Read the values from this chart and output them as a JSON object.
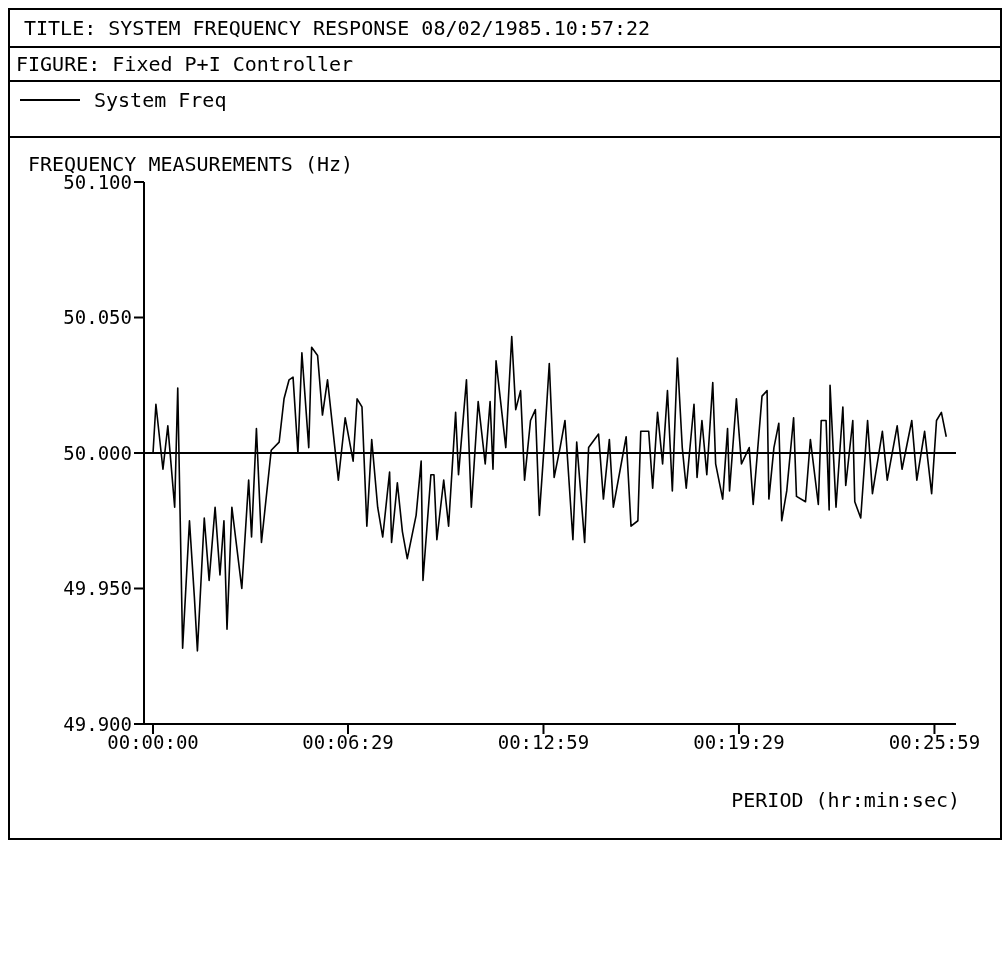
{
  "chart_data": {
    "type": "line",
    "title": "TITLE: SYSTEM FREQUENCY RESPONSE   08/02/1985.10:57:22",
    "subtitle": "FIGURE:  Fixed P+I Controller",
    "ylabel": "FREQUENCY MEASUREMENTS (Hz)",
    "xlabel": "PERIOD (hr:min:sec)",
    "legend": "top left",
    "grid": false,
    "marker": "none",
    "line_style": "solid",
    "xlim": [
      -0.005,
      0.445
    ],
    "ylim": [
      49.9,
      50.1
    ],
    "xticks": [
      {
        "value": 0,
        "label": "00:00:00"
      },
      {
        "value": 0.10806,
        "label": "00:06:29"
      },
      {
        "value": 0.21639,
        "label": "00:12:59"
      },
      {
        "value": 0.32472,
        "label": "00:19:29"
      },
      {
        "value": 0.43306,
        "label": "00:25:59"
      }
    ],
    "yticks": [
      {
        "value": 49.9,
        "label": "49.900"
      },
      {
        "value": 49.95,
        "label": "49.950"
      },
      {
        "value": 50,
        "label": "50.000"
      },
      {
        "value": 50.05,
        "label": "50.050"
      },
      {
        "value": 50.1,
        "label": "50.100"
      }
    ],
    "ref_lines": [
      {
        "axis": "y",
        "value": 50,
        "label": null,
        "color": "#000000"
      }
    ],
    "series": [
      {
        "name": "System Freq",
        "color": "#000000",
        "x": [
          0,
          0.0016,
          0.0055,
          0.0082,
          0.012,
          0.0137,
          0.0164,
          0.0202,
          0.0229,
          0.0246,
          0.0284,
          0.0311,
          0.0344,
          0.0371,
          0.0393,
          0.041,
          0.0437,
          0.0492,
          0.053,
          0.0546,
          0.0573,
          0.0601,
          0.0655,
          0.0699,
          0.0726,
          0.0754,
          0.0776,
          0.0803,
          0.0825,
          0.0863,
          0.0879,
          0.0912,
          0.0939,
          0.0967,
          0.1027,
          0.1065,
          0.1109,
          0.1131,
          0.1158,
          0.1185,
          0.1212,
          0.1245,
          0.1273,
          0.1311,
          0.1322,
          0.1354,
          0.1382,
          0.1409,
          0.1458,
          0.1486,
          0.1496,
          0.154,
          0.1557,
          0.1573,
          0.1611,
          0.1638,
          0.1677,
          0.1693,
          0.1737,
          0.1764,
          0.1802,
          0.1841,
          0.1868,
          0.1884,
          0.1901,
          0.1955,
          0.1988,
          0.201,
          0.2037,
          0.2059,
          0.2092,
          0.2119,
          0.2141,
          0.2168,
          0.2196,
          0.2223,
          0.2256,
          0.2283,
          0.2327,
          0.2348,
          0.2392,
          0.2414,
          0.2469,
          0.2496,
          0.2529,
          0.2551,
          0.2622,
          0.2649,
          0.2687,
          0.2703,
          0.2747,
          0.2769,
          0.2796,
          0.2824,
          0.2851,
          0.2878,
          0.2906,
          0.2933,
          0.2955,
          0.2998,
          0.3015,
          0.3042,
          0.3069,
          0.3102,
          0.3118,
          0.3157,
          0.3184,
          0.3195,
          0.3233,
          0.3261,
          0.3304,
          0.3326,
          0.3375,
          0.3403,
          0.3413,
          0.3441,
          0.3468,
          0.3484,
          0.3512,
          0.355,
          0.3566,
          0.3616,
          0.3643,
          0.3687,
          0.3703,
          0.373,
          0.3747,
          0.3752,
          0.3785,
          0.3823,
          0.3839,
          0.3878,
          0.3889,
          0.3922,
          0.396,
          0.3987,
          0.4042,
          0.4069,
          0.4124,
          0.4151,
          0.4205,
          0.4233,
          0.4276,
          0.4315,
          0.4342,
          0.4369,
          0.4396
        ],
        "values": [
          50.0,
          50.018,
          49.994,
          50.01,
          49.98,
          50.024,
          49.928,
          49.975,
          49.947,
          49.927,
          49.976,
          49.953,
          49.98,
          49.955,
          49.975,
          49.935,
          49.98,
          49.95,
          49.99,
          49.969,
          50.009,
          49.967,
          50.001,
          50.004,
          50.02,
          50.027,
          50.028,
          50.0,
          50.037,
          50.002,
          50.039,
          50.036,
          50.014,
          50.027,
          49.99,
          50.013,
          49.997,
          50.02,
          50.017,
          49.973,
          50.005,
          49.98,
          49.969,
          49.993,
          49.967,
          49.989,
          49.971,
          49.961,
          49.977,
          49.997,
          49.953,
          49.992,
          49.992,
          49.968,
          49.99,
          49.973,
          50.015,
          49.992,
          50.027,
          49.98,
          50.019,
          49.996,
          50.019,
          49.994,
          50.034,
          50.002,
          50.043,
          50.016,
          50.023,
          49.99,
          50.012,
          50.016,
          49.977,
          50.003,
          50.033,
          49.991,
          50.002,
          50.012,
          49.968,
          50.004,
          49.967,
          50.002,
          50.007,
          49.983,
          50.005,
          49.98,
          50.006,
          49.973,
          49.975,
          50.008,
          50.008,
          49.987,
          50.015,
          49.996,
          50.023,
          49.986,
          50.035,
          50.002,
          49.987,
          50.018,
          49.991,
          50.012,
          49.992,
          50.026,
          49.996,
          49.983,
          50.009,
          49.986,
          50.02,
          49.996,
          50.002,
          49.981,
          50.021,
          50.023,
          49.983,
          50.002,
          50.011,
          49.975,
          49.986,
          50.013,
          49.984,
          49.982,
          50.005,
          49.981,
          50.012,
          50.012,
          49.979,
          50.025,
          49.98,
          50.017,
          49.988,
          50.012,
          49.982,
          49.976,
          50.012,
          49.985,
          50.008,
          49.99,
          50.01,
          49.994,
          50.012,
          49.99,
          50.008,
          49.985,
          50.012,
          50.015,
          50.006
        ]
      }
    ]
  }
}
